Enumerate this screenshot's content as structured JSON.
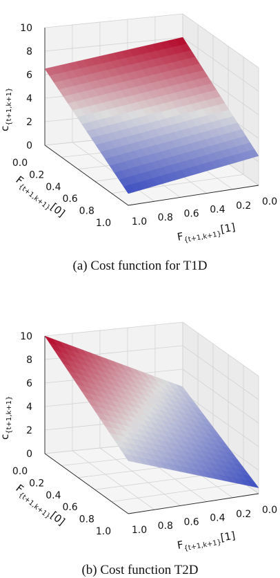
{
  "figure": {
    "panels": [
      {
        "caption": "(a) Cost function for T1D",
        "zlabel_main": "c",
        "zlabel_sub": "{t+1,k+1}",
        "xlabel_main": "F",
        "xlabel_sub": "{t+1,k+1}",
        "xlabel_suffix": "[0]",
        "ylabel_main": "F",
        "ylabel_sub": "{t+1,k+1}",
        "ylabel_suffix": "[1]"
      },
      {
        "caption": "(b) Cost function T2D",
        "zlabel_main": "c",
        "zlabel_sub": "{t+1,k+1}",
        "xlabel_main": "F",
        "xlabel_sub": "{t+1,k+1}",
        "xlabel_suffix": "[0]",
        "ylabel_main": "F",
        "ylabel_sub": "{t+1,k+1}",
        "ylabel_suffix": "[1]"
      }
    ]
  },
  "chart_data": [
    {
      "type": "surface3d",
      "colormap": "coolwarm",
      "x_ticks": [
        "0.0",
        "0.2",
        "0.4",
        "0.6",
        "0.8",
        "1.0"
      ],
      "y_ticks": [
        "0.0",
        "0.2",
        "0.4",
        "0.6",
        "0.8",
        "1.0"
      ],
      "z_ticks": [
        "0",
        "2",
        "4",
        "6",
        "8",
        "10"
      ],
      "xlim": [
        0,
        1
      ],
      "ylim": [
        0,
        1
      ],
      "zlim": [
        0,
        10
      ],
      "grid": true,
      "surface": {
        "x0y0": 8,
        "x0y1": 6.5,
        "x1y0": 2.5,
        "x1y1": 1
      }
    },
    {
      "type": "surface3d",
      "colormap": "coolwarm",
      "x_ticks": [
        "0.0",
        "0.2",
        "0.4",
        "0.6",
        "0.8",
        "1.0"
      ],
      "y_ticks": [
        "0.0",
        "0.2",
        "0.4",
        "0.6",
        "0.8",
        "1.0"
      ],
      "z_ticks": [
        "0",
        "2",
        "4",
        "6",
        "8",
        "10"
      ],
      "xlim": [
        0,
        1
      ],
      "ylim": [
        0,
        1
      ],
      "zlim": [
        0,
        10
      ],
      "grid": true,
      "surface": {
        "x0y0": 4.5,
        "x0y1": 10,
        "x1y0": 0.5,
        "x1y1": 4.5
      }
    }
  ]
}
